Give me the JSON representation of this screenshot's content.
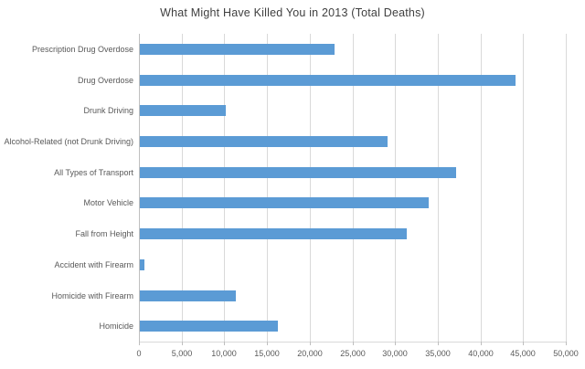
{
  "chart_data": {
    "type": "bar",
    "orientation": "horizontal",
    "title": "What Might Have Killed You in 2013 (Total Deaths)",
    "categories": [
      "Prescription Drug Overdose",
      "Drug Overdose",
      "Drunk Driving",
      "Alcohol-Related (not Drunk Driving)",
      "All Types of Transport",
      "Motor Vehicle",
      "Fall from Height",
      "Accident with Firearm",
      "Homicide with Firearm",
      "Homicide"
    ],
    "values": [
      22767,
      43982,
      10076,
      29001,
      37000,
      33804,
      31240,
      505,
      11208,
      16121
    ],
    "xlabel": "",
    "ylabel": "",
    "xlim": [
      0,
      50000
    ],
    "x_tick_interval": 5000,
    "x_tick_labels": [
      "0",
      "5,000",
      "10,000",
      "15,000",
      "20,000",
      "25,000",
      "30,000",
      "35,000",
      "40,000",
      "45,000",
      "50,000"
    ],
    "grid": true,
    "legend": false,
    "colors": {
      "bar": "#5b9bd5",
      "gridline": "#d9d9d9",
      "axis_line": "#bfbfbf",
      "label_text": "#595959",
      "title_text": "#404040",
      "background": "#ffffff"
    }
  }
}
